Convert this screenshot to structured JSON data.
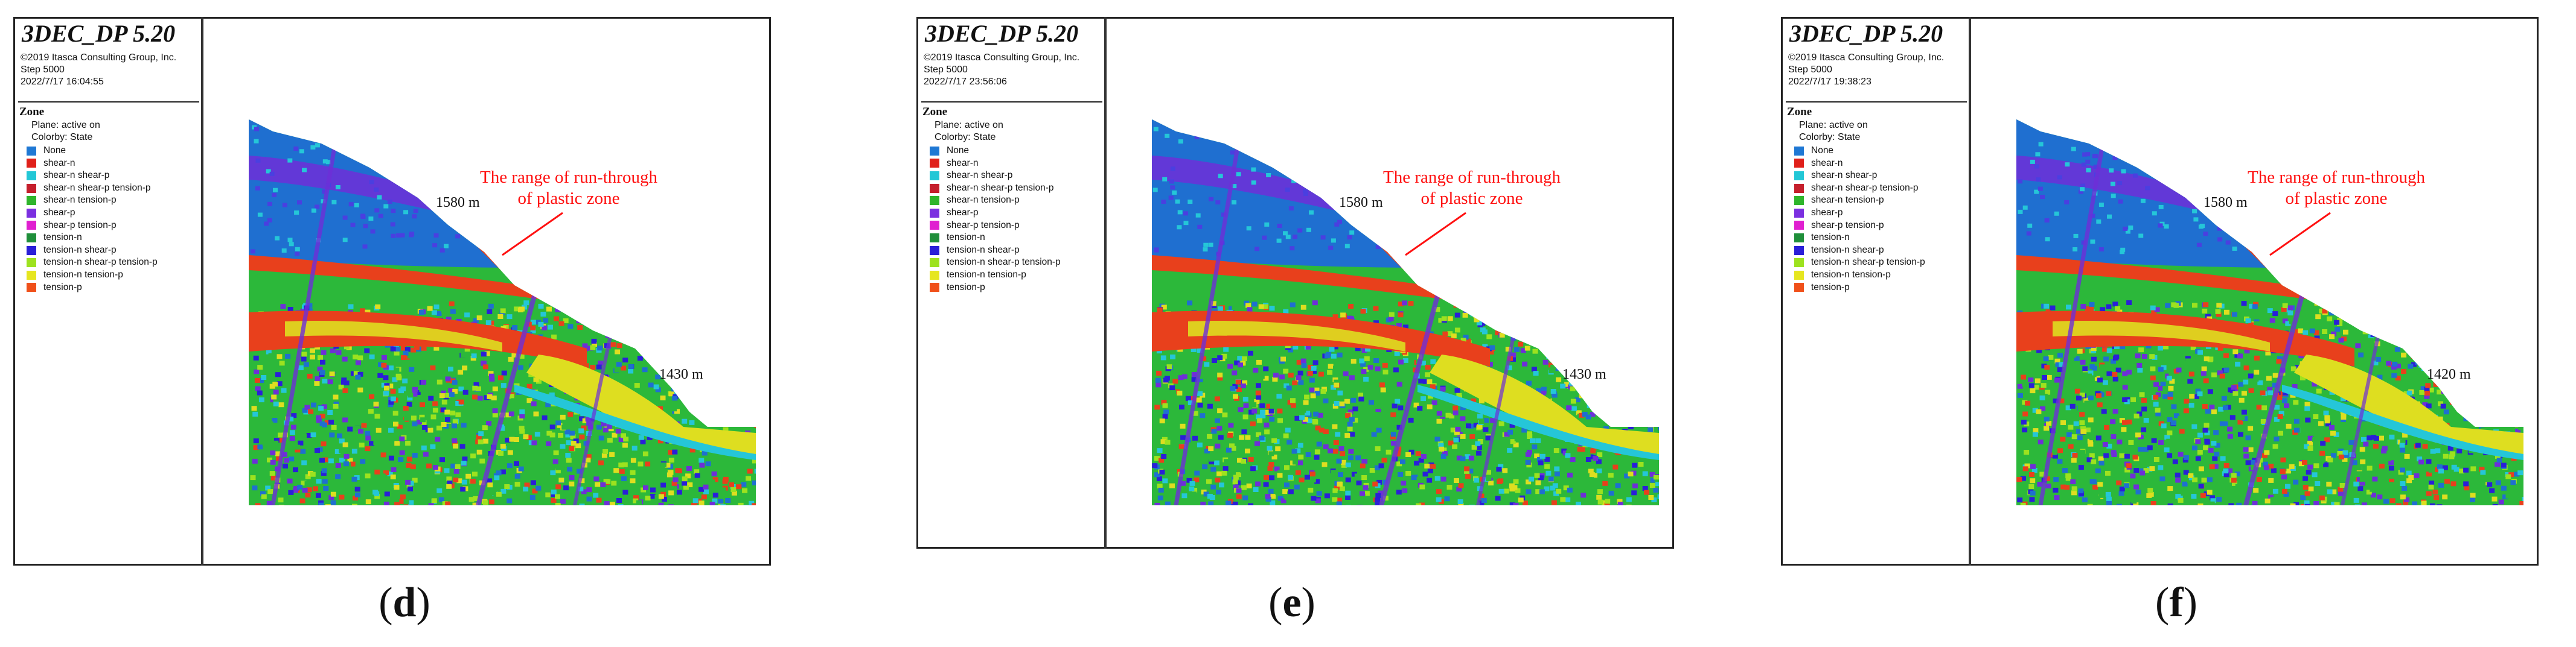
{
  "panels": [
    {
      "title": "3DEC_DP 5.20",
      "copyright": "©2019 Itasca Consulting Group, Inc.",
      "step": "Step 5000",
      "datetime": "2022/7/17 16:04:55",
      "zone_heading": "Zone",
      "plane": "Plane: active on",
      "colorby": "Colorby: State",
      "elev_top": "1580 m",
      "elev_bottom": "1430 m",
      "annotation_line1": "The range of run-through",
      "annotation_line2": "of plastic zone",
      "caption_open": "(",
      "caption_letter": "d",
      "caption_close": ")"
    },
    {
      "title": "3DEC_DP 5.20",
      "copyright": "©2019 Itasca Consulting Group, Inc.",
      "step": "Step 5000",
      "datetime": "2022/7/17 23:56:06",
      "zone_heading": "Zone",
      "plane": "Plane: active on",
      "colorby": "Colorby: State",
      "elev_top": "1580 m",
      "elev_bottom": "1430 m",
      "annotation_line1": "The range of run-through",
      "annotation_line2": "of plastic zone",
      "caption_open": "(",
      "caption_letter": "e",
      "caption_close": ")"
    },
    {
      "title": "3DEC_DP 5.20",
      "copyright": "©2019 Itasca Consulting Group, Inc.",
      "step": "Step 5000",
      "datetime": "2022/7/17 19:38:23",
      "zone_heading": "Zone",
      "plane": "Plane: active on",
      "colorby": "Colorby: State",
      "elev_top": "1580 m",
      "elev_bottom": "1420 m",
      "annotation_line1": "The range of run-through",
      "annotation_line2": "of plastic zone",
      "caption_open": "(",
      "caption_letter": "f",
      "caption_close": ")"
    }
  ],
  "legend": [
    {
      "label": "None",
      "color": "#1f78d4"
    },
    {
      "label": "shear-n",
      "color": "#e0201a"
    },
    {
      "label": "shear-n shear-p",
      "color": "#22c7d6"
    },
    {
      "label": "shear-n shear-p tension-p",
      "color": "#c51f2c"
    },
    {
      "label": "shear-n tension-p",
      "color": "#2fb52c"
    },
    {
      "label": "shear-p",
      "color": "#7b2fe0"
    },
    {
      "label": "shear-p tension-p",
      "color": "#e01fd0"
    },
    {
      "label": "tension-n",
      "color": "#1f8f3a"
    },
    {
      "label": "tension-n shear-p",
      "color": "#2a1fd8"
    },
    {
      "label": "tension-n shear-p tension-p",
      "color": "#9de21f"
    },
    {
      "label": "tension-n tension-p",
      "color": "#e6e61f"
    },
    {
      "label": "tension-p",
      "color": "#f0501a"
    }
  ],
  "colors": {
    "annotation": "#ff1010",
    "frame": "#222222",
    "blue": "#1f6fd0",
    "purple": "#6e2fd8",
    "red": "#e8401c",
    "yellow": "#dede20",
    "green": "#2cb83a",
    "cyan": "#25c6d8"
  }
}
